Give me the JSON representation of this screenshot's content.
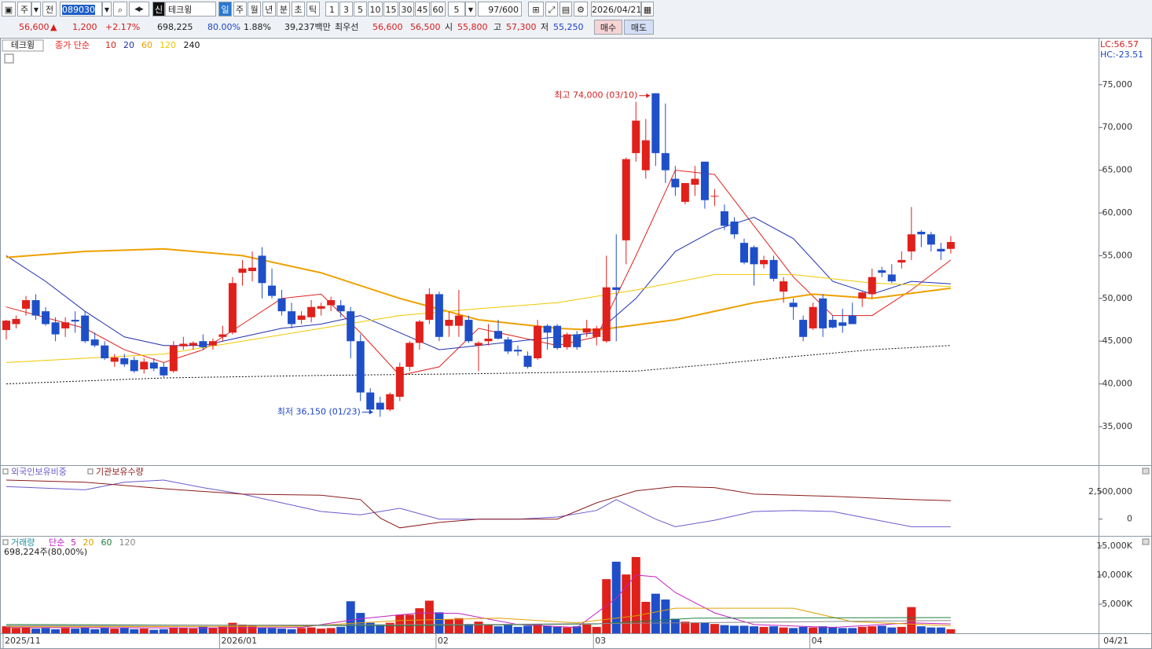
{
  "toolbar": {
    "market": "주",
    "prev": "전",
    "code": "089030",
    "credit": "신",
    "name": "테크윙",
    "periods": [
      "일",
      "주",
      "월",
      "년",
      "분",
      "초",
      "틱"
    ],
    "intervals": [
      "1",
      "3",
      "5",
      "10",
      "15",
      "30",
      "45",
      "60"
    ],
    "unit": "5",
    "count": "97/600",
    "date": "2026/04/21"
  },
  "quote": {
    "price": "56,600",
    "sign": "▲",
    "change": "1,200",
    "rate": "+2.17%",
    "volume": "698,225",
    "volume_ratio": "80.00%",
    "turnover": "1.88%",
    "amount": "39,237백만",
    "best_label": "최우선",
    "ask": "56,600",
    "bid": "56,500",
    "open_label": "시",
    "open": "55,800",
    "high_label": "고",
    "high": "57,300",
    "low_label": "저",
    "low": "55,250",
    "buy": "매수",
    "sell": "매도"
  },
  "chart_data": [
    {
      "type": "candlestick",
      "title": "테크윙",
      "legend_prefix": "종가 단순",
      "up_color": "#e0201b",
      "down_color": "#1f4fc8",
      "lc": "LC:56.57",
      "hc": "HC:-23.51",
      "high_note": "최고 74,000 (03/10)",
      "low_note": "최저 36,150 (01/23)",
      "categories": [
        "2025/11",
        null,
        null,
        null,
        null,
        null,
        null,
        null,
        null,
        null,
        null,
        null,
        null,
        null,
        null,
        null,
        null,
        null,
        null,
        null,
        null,
        null,
        "2026/01",
        null,
        null,
        null,
        null,
        null,
        null,
        null,
        null,
        null,
        null,
        null,
        null,
        null,
        null,
        null,
        null,
        null,
        null,
        null,
        null,
        null,
        "02",
        null,
        null,
        null,
        null,
        null,
        null,
        null,
        null,
        null,
        null,
        null,
        null,
        null,
        null,
        null,
        "03",
        null,
        null,
        null,
        null,
        null,
        null,
        null,
        null,
        null,
        null,
        null,
        null,
        null,
        null,
        null,
        null,
        null,
        null,
        null,
        null,
        null,
        "04",
        null,
        null,
        null,
        null,
        null,
        null,
        null,
        null,
        null,
        null,
        null,
        null,
        null,
        "04/21"
      ],
      "open": [
        46300,
        47000,
        48800,
        49800,
        48500,
        47200,
        46500,
        47500,
        48000,
        45200,
        44500,
        42600,
        43000,
        42800,
        41700,
        42500,
        42000,
        41500,
        44400,
        44500,
        45000,
        44500,
        45500,
        46000,
        53000,
        53200,
        55000,
        51500,
        50000,
        48500,
        47500,
        47800,
        48800,
        49200,
        49200,
        48500,
        45000,
        39000,
        37800,
        37000,
        38500,
        42000,
        44800,
        47500,
        50500,
        46800,
        46800,
        47500,
        44500,
        45000,
        46200,
        45200,
        44000,
        43300,
        43000,
        46800,
        46800,
        44300,
        45800,
        46000,
        45500,
        45000,
        51300,
        56800,
        67000,
        65000,
        74000,
        67000,
        64000,
        61300,
        63300,
        66000,
        62000,
        60200,
        59000,
        56500,
        56000,
        54000,
        54500,
        50800,
        49500,
        47500,
        46500,
        50000,
        47500,
        47200,
        48000,
        50000,
        50500,
        53300,
        52800,
        54200,
        55500,
        57800,
        57500,
        55800,
        55800
      ],
      "high": [
        47500,
        48000,
        50300,
        50500,
        49000,
        47800,
        47800,
        48500,
        48500,
        46000,
        45000,
        43500,
        43500,
        43200,
        43000,
        43000,
        42500,
        45000,
        45500,
        45000,
        45800,
        45300,
        46800,
        52500,
        54500,
        55500,
        56000,
        53500,
        51000,
        49500,
        48500,
        49800,
        49500,
        50200,
        49800,
        49000,
        45800,
        39500,
        38500,
        39000,
        42500,
        45000,
        47500,
        51200,
        50800,
        48500,
        51000,
        48000,
        45000,
        47000,
        47500,
        45500,
        44500,
        43800,
        47500,
        47000,
        47000,
        46000,
        46200,
        47500,
        46800,
        55000,
        57500,
        66500,
        73000,
        71000,
        74000,
        72800,
        65500,
        63500,
        65500,
        66000,
        62800,
        61000,
        59500,
        57000,
        56200,
        55000,
        55000,
        52500,
        50000,
        48000,
        49500,
        50500,
        48000,
        48800,
        49500,
        50800,
        53500,
        53700,
        54000,
        55500,
        60700,
        58000,
        57800,
        56500,
        57300
      ],
      "low": [
        45200,
        46500,
        48000,
        47500,
        46800,
        45000,
        45500,
        46000,
        44800,
        44300,
        42800,
        42000,
        42000,
        41300,
        41200,
        41500,
        40800,
        41300,
        44000,
        44000,
        44000,
        44000,
        45000,
        45800,
        51500,
        52000,
        50000,
        50000,
        48000,
        46500,
        47000,
        47200,
        48000,
        48500,
        47800,
        43000,
        38000,
        36800,
        36150,
        36800,
        38000,
        41500,
        44000,
        47000,
        45000,
        45500,
        45500,
        44800,
        41500,
        44500,
        45200,
        43500,
        43300,
        41800,
        42800,
        44000,
        44000,
        44000,
        44000,
        45500,
        44500,
        44800,
        45000,
        54000,
        66000,
        64000,
        65500,
        63500,
        62000,
        61000,
        62000,
        60500,
        60800,
        58000,
        57000,
        54000,
        51500,
        53500,
        52000,
        49500,
        47500,
        45000,
        46300,
        45500,
        46500,
        46000,
        47000,
        49000,
        50000,
        52500,
        51800,
        53500,
        54500,
        56000,
        55500,
        54500,
        55250
      ],
      "close": [
        47400,
        47600,
        49800,
        48000,
        47000,
        45800,
        47200,
        47300,
        45000,
        44500,
        43000,
        43100,
        42300,
        41500,
        42600,
        41800,
        41000,
        44500,
        44700,
        44800,
        44300,
        45000,
        45800,
        51800,
        53500,
        53600,
        51800,
        50300,
        48500,
        47000,
        48000,
        49000,
        49100,
        49800,
        48500,
        45000,
        39000,
        37000,
        37000,
        38800,
        42000,
        44800,
        47300,
        50500,
        45500,
        47500,
        48000,
        45000,
        44800,
        45300,
        45300,
        43800,
        43800,
        42000,
        46800,
        46000,
        44200,
        45800,
        44300,
        46500,
        46500,
        51300,
        51000,
        66300,
        70800,
        68500,
        67000,
        65000,
        63000,
        63500,
        64000,
        61500,
        62000,
        58500,
        57500,
        54200,
        54000,
        54500,
        52300,
        52000,
        49000,
        45500,
        49000,
        46500,
        46600,
        46800,
        47000,
        50700,
        52500,
        53000,
        52000,
        54500,
        57500,
        57500,
        56300,
        55500,
        56600
      ],
      "ylim": [
        30500,
        80500
      ],
      "yticks": [
        {
          "value": 35000,
          "label": "35,000"
        },
        {
          "value": 40000,
          "label": "40,000"
        },
        {
          "value": 45000,
          "label": "45,000"
        },
        {
          "value": 50000,
          "label": "50,000"
        },
        {
          "value": 55000,
          "label": "55,000"
        },
        {
          "value": 60000,
          "label": "60,000"
        },
        {
          "value": 65000,
          "label": "65,000"
        },
        {
          "value": 70000,
          "label": "70,000"
        },
        {
          "value": 75000,
          "label": "75,000"
        }
      ],
      "series": [
        {
          "name": "10",
          "color": "#e0201b",
          "x": [
            0,
            8,
            12,
            16,
            20,
            24,
            28,
            32,
            36,
            40,
            44,
            48,
            52,
            56,
            60,
            64,
            68,
            72,
            76,
            80,
            84,
            88,
            92,
            96
          ],
          "values": [
            49000,
            46500,
            44000,
            42500,
            44000,
            47000,
            50000,
            50500,
            46000,
            41000,
            42000,
            46500,
            45500,
            44500,
            45500,
            55000,
            65000,
            64500,
            58500,
            52500,
            48000,
            48000,
            51000,
            54500
          ]
        },
        {
          "name": "20",
          "color": "#1f2fb0",
          "x": [
            0,
            4,
            8,
            12,
            16,
            20,
            24,
            28,
            32,
            36,
            40,
            44,
            48,
            52,
            56,
            60,
            64,
            68,
            72,
            76,
            80,
            84,
            88,
            92,
            96
          ],
          "values": [
            55000,
            52000,
            48500,
            45500,
            44500,
            44500,
            45500,
            46500,
            47000,
            48000,
            46000,
            44000,
            44500,
            45000,
            45500,
            46000,
            50000,
            55500,
            58000,
            59500,
            57000,
            52000,
            50500,
            52000,
            51700
          ]
        },
        {
          "name": "60",
          "color": "#eea000",
          "x": [
            0,
            8,
            16,
            24,
            32,
            40,
            48,
            56,
            60,
            68,
            76,
            82,
            88,
            96
          ],
          "values": [
            54800,
            55500,
            55800,
            55000,
            53000,
            50000,
            47500,
            46500,
            46300,
            47500,
            49500,
            50500,
            50000,
            51200
          ]
        },
        {
          "name": "120",
          "color": "#f0c800",
          "x": [
            0,
            16,
            24,
            32,
            40,
            48,
            56,
            64,
            72,
            80,
            88,
            96
          ],
          "values": [
            42500,
            43500,
            45000,
            46500,
            48000,
            48800,
            49500,
            51000,
            52800,
            52800,
            51800,
            51400
          ]
        },
        {
          "name": "240",
          "color": "#111111",
          "x": [
            0,
            16,
            32,
            48,
            64,
            72,
            80,
            88,
            96
          ],
          "values": [
            40000,
            40700,
            41000,
            41200,
            41500,
            42300,
            43200,
            44000,
            44500
          ]
        }
      ]
    },
    {
      "type": "line",
      "ylim": [
        -1540000,
        4900000
      ],
      "yticks": [
        0,
        {
          "value": 2500000,
          "label": "2,500,000"
        }
      ],
      "series": [
        {
          "name": "외국인보유비중",
          "color": "#6a5acd",
          "x": [
            0,
            8,
            12,
            16,
            20,
            24,
            28,
            32,
            36,
            40,
            44,
            48,
            52,
            56,
            60,
            62,
            66,
            68,
            72,
            76,
            80,
            84,
            88,
            92,
            96
          ],
          "values": [
            3000000,
            2700000,
            3400000,
            3600000,
            2900000,
            2300000,
            1500000,
            700000,
            400000,
            1000000,
            0,
            0,
            0,
            200000,
            800000,
            1800000,
            0,
            -700000,
            -100000,
            700000,
            800000,
            700000,
            0,
            -700000,
            -700000
          ]
        },
        {
          "name": "기관보유수량",
          "color": "#8b1a1a",
          "x": [
            0,
            8,
            16,
            24,
            32,
            36,
            38,
            40,
            44,
            48,
            56,
            60,
            64,
            68,
            72,
            76,
            84,
            92,
            96
          ],
          "values": [
            3600000,
            3400000,
            2800000,
            2300000,
            2200000,
            1800000,
            100000,
            -800000,
            -300000,
            0,
            0,
            1500000,
            2600000,
            3000000,
            2900000,
            2300000,
            2100000,
            1800000,
            1700000
          ]
        }
      ]
    },
    {
      "type": "bar",
      "title": "거래량",
      "legend_prefix": "단순",
      "note": "698,224주(80,00%)",
      "ylim": [
        0,
        16600000
      ],
      "yticks": [
        {
          "value": 5000000,
          "label": "5,000K"
        },
        {
          "value": 10000000,
          "label": "10,000K"
        },
        {
          "value": 15000000,
          "label": "15,000K"
        }
      ],
      "values": [
        1200000,
        900000,
        1000000,
        800000,
        900000,
        700000,
        900000,
        800000,
        1000000,
        700000,
        900000,
        800000,
        900000,
        700000,
        800000,
        600000,
        700000,
        1000000,
        900000,
        800000,
        1200000,
        900000,
        1200000,
        1800000,
        1500000,
        1300000,
        1000000,
        900000,
        800000,
        700000,
        900000,
        1000000,
        800000,
        900000,
        1100000,
        5500000,
        3500000,
        1800000,
        1500000,
        1800000,
        3200000,
        3200000,
        4300000,
        5600000,
        3600000,
        2400000,
        2600000,
        1600000,
        2000000,
        1500000,
        1200000,
        1400000,
        1100000,
        1300000,
        1600000,
        1300000,
        1100000,
        1000000,
        1200000,
        1500000,
        1100000,
        9300000,
        12300000,
        10100000,
        13100000,
        5400000,
        6800000,
        5800000,
        2500000,
        2000000,
        1800000,
        1800000,
        1600000,
        1400000,
        1300000,
        1300000,
        1200000,
        1100000,
        1200000,
        1000000,
        900000,
        1100000,
        1000000,
        1200000,
        1100000,
        900000,
        900000,
        1100000,
        1200000,
        1300000,
        1000000,
        1100000,
        4500000,
        1200000,
        1000000,
        1000000,
        698224
      ],
      "series": [
        {
          "name": "5",
          "color": "#c020c0",
          "x": [
            0,
            20,
            30,
            36,
            42,
            46,
            52,
            58,
            62,
            64,
            66,
            68,
            72,
            76,
            84,
            92,
            96
          ],
          "values": [
            1000000,
            900000,
            1000000,
            2500000,
            3500000,
            3400000,
            1500000,
            1000000,
            6000000,
            10000000,
            9700000,
            7000000,
            3500000,
            1500000,
            1000000,
            1800000,
            1600000
          ]
        },
        {
          "name": "20",
          "color": "#e0a000",
          "x": [
            0,
            30,
            40,
            50,
            58,
            64,
            68,
            80,
            86,
            96
          ],
          "values": [
            1100000,
            1200000,
            2200000,
            2600000,
            1800000,
            3000000,
            4300000,
            4300000,
            2000000,
            1300000
          ]
        },
        {
          "name": "60",
          "color": "#208040",
          "x": [
            0,
            40,
            60,
            70,
            96
          ],
          "values": [
            1500000,
            1300000,
            1600000,
            2600000,
            2700000
          ]
        },
        {
          "name": "120",
          "color": "#888888",
          "x": [
            0,
            48,
            96
          ],
          "values": [
            1300000,
            1500000,
            2200000
          ]
        }
      ]
    }
  ]
}
